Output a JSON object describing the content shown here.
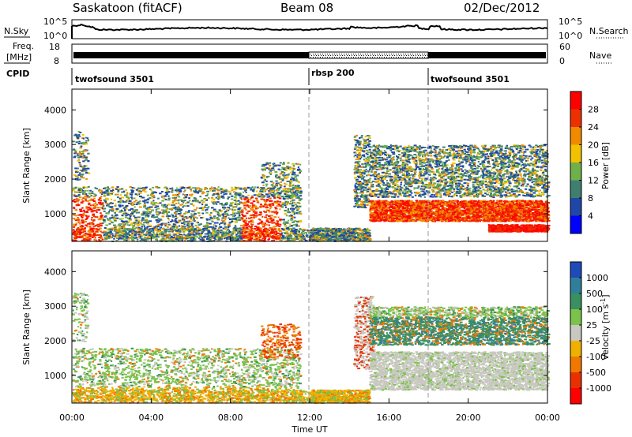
{
  "header": {
    "title": "Saskatoon (fitACF)",
    "beam": "Beam 08",
    "date": "02/Dec/2012"
  },
  "panels": {
    "nsky_label": "N.Sky",
    "nsky_ticks": [
      "10^5",
      "10^0"
    ],
    "nsearch_label": "N.Search",
    "nsearch_ticks": [
      "10^5",
      "10^0"
    ],
    "freq_label_line1": "Freq.",
    "freq_label_line2": "[MHz]",
    "freq_ticks": [
      "18",
      "8"
    ],
    "nave_label": "Nave",
    "nave_ticks": [
      "60",
      "0"
    ],
    "cpid_label": "CPID",
    "cpid_modes": [
      {
        "name": "twofsound 3501",
        "start": 0
      },
      {
        "name": "rbsp 200",
        "start": 12
      },
      {
        "name": "twofsound 3501",
        "start": 18
      }
    ]
  },
  "chart_data": [
    {
      "type": "heatmap",
      "name": "power-panel",
      "ylabel": "Slant Range [km]",
      "yticks": [
        "1000",
        "2000",
        "3000",
        "4000"
      ],
      "ylim": [
        200,
        4600
      ],
      "xlim": [
        0,
        24
      ],
      "colorbar_label": "Power [dB]",
      "colorbar_ticks": [
        "4",
        "8",
        "12",
        "16",
        "20",
        "24",
        "28"
      ],
      "colors": [
        "#0000ff",
        "#1f47a8",
        "#3f7f6f",
        "#6fb04a",
        "#f2c200",
        "#f28a00",
        "#ee3000",
        "#ff0000"
      ]
    },
    {
      "type": "heatmap",
      "name": "velocity-panel",
      "ylabel": "Slant Range [km]",
      "yticks": [
        "1000",
        "2000",
        "3000",
        "4000"
      ],
      "ylim": [
        200,
        4600
      ],
      "xlim": [
        0,
        24
      ],
      "xlabel": "Time UT",
      "xticks": [
        "00:00",
        "04:00",
        "08:00",
        "12:00",
        "16:00",
        "20:00",
        "00:00"
      ],
      "colorbar_label": "Velocity [m s^-1]",
      "colorbar_ticks": [
        "1000",
        "500",
        "100",
        "25",
        "-25",
        "-100",
        "-500",
        "-1000"
      ],
      "colors": [
        "#1e4bb8",
        "#2f7f9a",
        "#3a9060",
        "#7bc24a",
        "#c8c8c0",
        "#f0b000",
        "#f07800",
        "#e83000",
        "#ff0000"
      ]
    }
  ]
}
